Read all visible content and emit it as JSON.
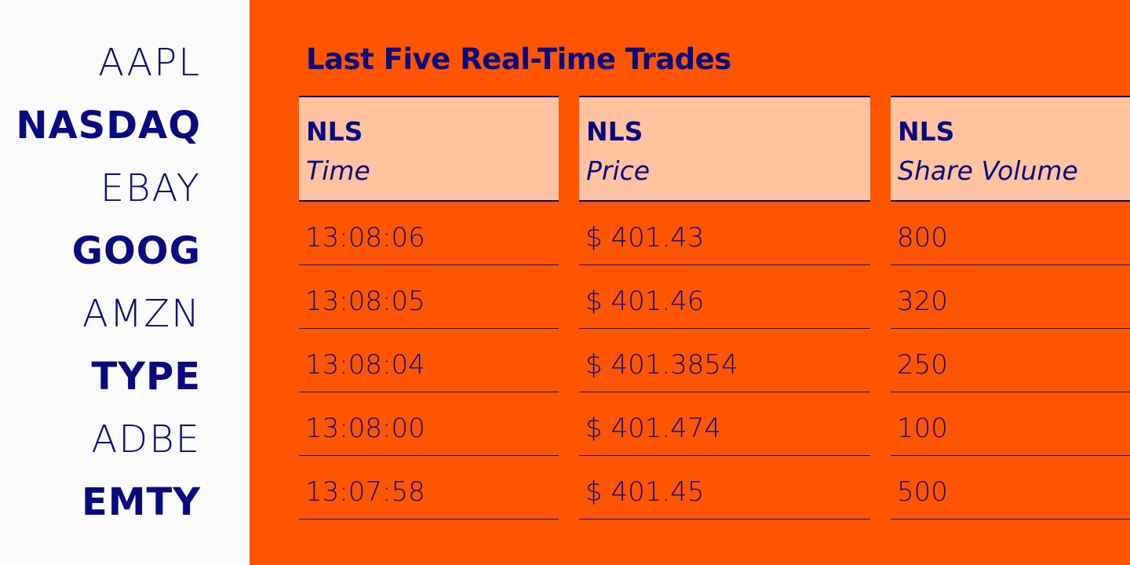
{
  "colors": {
    "background": "#FF5500",
    "header_fill": "#FFC3A0",
    "text": "#0A0A80",
    "left_panel": "#FAFAFA"
  },
  "tickers": [
    {
      "label": "AAPL",
      "weight": "light"
    },
    {
      "label": "NASDAQ",
      "weight": "bold"
    },
    {
      "label": "EBAY",
      "weight": "light"
    },
    {
      "label": "GOOG",
      "weight": "bold"
    },
    {
      "label": "AMZN",
      "weight": "light"
    },
    {
      "label": "TYPE",
      "weight": "bold"
    },
    {
      "label": "ADBE",
      "weight": "light"
    },
    {
      "label": "EMTY",
      "weight": "bold"
    }
  ],
  "title": "Last Five Real-Time Trades",
  "columns": [
    {
      "prefix": "NLS",
      "label": "Time",
      "values": [
        "13:08:06",
        "13:08:05",
        "13:08:04",
        "13:08:00",
        "13:07:58"
      ]
    },
    {
      "prefix": "NLS",
      "label": "Price",
      "values": [
        "$ 401.43",
        "$ 401.46",
        "$ 401.3854",
        "$ 401.474",
        "$ 401.45"
      ]
    },
    {
      "prefix": "NLS",
      "label": "Share Volume",
      "values": [
        "800",
        "320",
        "250",
        "100",
        "500"
      ]
    }
  ]
}
